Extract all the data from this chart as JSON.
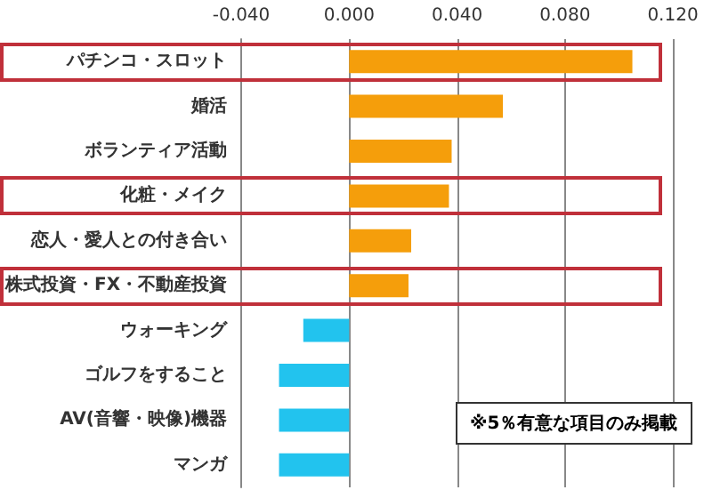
{
  "chart_data": {
    "type": "bar",
    "orientation": "horizontal",
    "categories": [
      "パチンコ・スロット",
      "婚活",
      "ボランティア活動",
      "化粧・メイク",
      "恋人・愛人との付き合い",
      "株式投資・FX・不動産投資",
      "ウォーキング",
      "ゴルフをすること",
      "AV(音響・映像)機器",
      "マンガ"
    ],
    "values": [
      0.105,
      0.057,
      0.038,
      0.037,
      0.023,
      0.022,
      -0.017,
      -0.026,
      -0.026,
      -0.026
    ],
    "colors": [
      "#f59e0b",
      "#f59e0b",
      "#f59e0b",
      "#f59e0b",
      "#f59e0b",
      "#f59e0b",
      "#22c3ee",
      "#22c3ee",
      "#22c3ee",
      "#22c3ee"
    ],
    "xlim": [
      -0.04,
      0.12
    ],
    "xticks": [
      {
        "value": -0.04,
        "label": "-0.040"
      },
      {
        "value": 0,
        "label": "0.000"
      },
      {
        "value": 0.04,
        "label": "0.040"
      },
      {
        "value": 0.08,
        "label": "0.080"
      },
      {
        "value": 0.12,
        "label": "0.120"
      }
    ],
    "grid": "x",
    "annotations": [
      "※5％有意な項目のみ掲載"
    ]
  }
}
